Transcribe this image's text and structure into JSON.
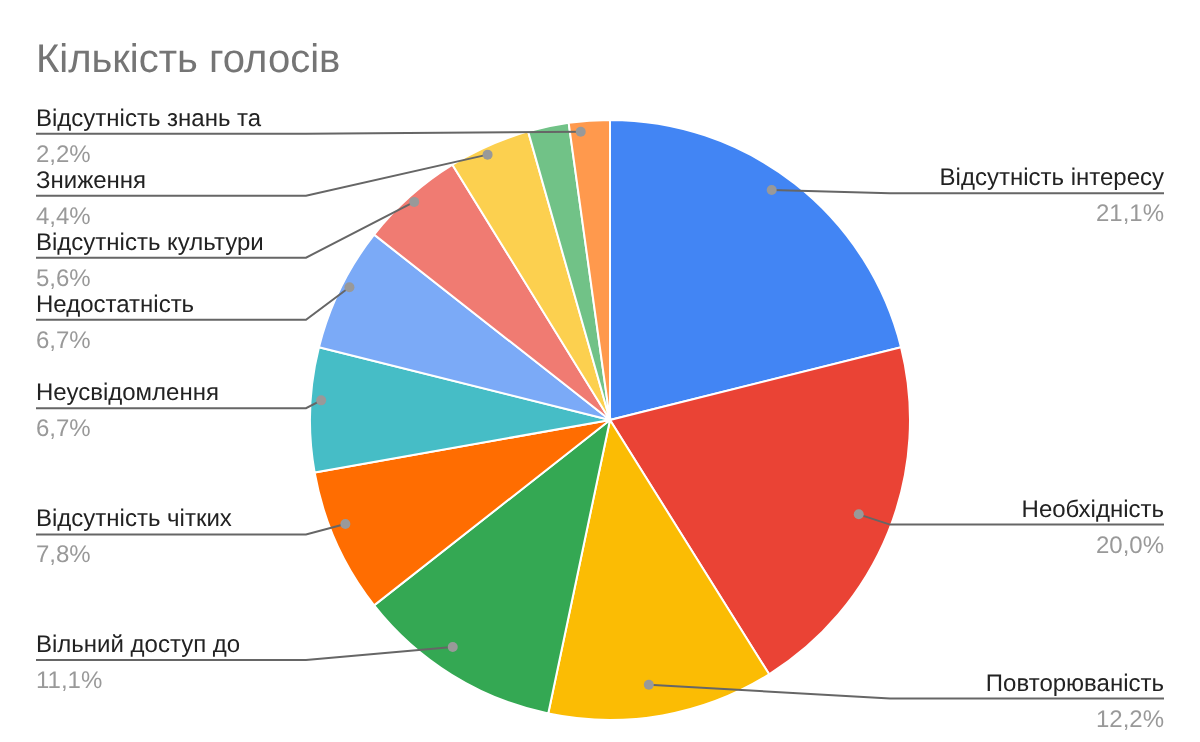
{
  "chart_data": {
    "type": "pie",
    "title": "Кількість голосів",
    "categories": [
      "Відсутність інтересу",
      "Необхідність",
      "Повторюваність",
      "Вільний доступ до",
      "Відсутність чітких",
      "Неусвідомлення",
      "Недостатність",
      "Відсутність культури",
      "Зниження",
      null,
      "Відсутність знань та"
    ],
    "values": [
      21.1,
      20.0,
      12.2,
      11.1,
      7.8,
      6.7,
      6.7,
      5.6,
      4.4,
      2.2,
      2.2
    ],
    "value_labels": [
      "21,1%",
      "20,0%",
      "12,2%",
      "11,1%",
      "7,8%",
      "6,7%",
      "6,7%",
      "5,6%",
      "4,4%",
      null,
      "2,2%"
    ],
    "colors": [
      "#4285f4",
      "#ea4335",
      "#fbbc04",
      "#34a853",
      "#ff6d01",
      "#46bdc6",
      "#7baaf7",
      "#f07b72",
      "#fcd04f",
      "#71c287",
      "#ff994d"
    ]
  }
}
